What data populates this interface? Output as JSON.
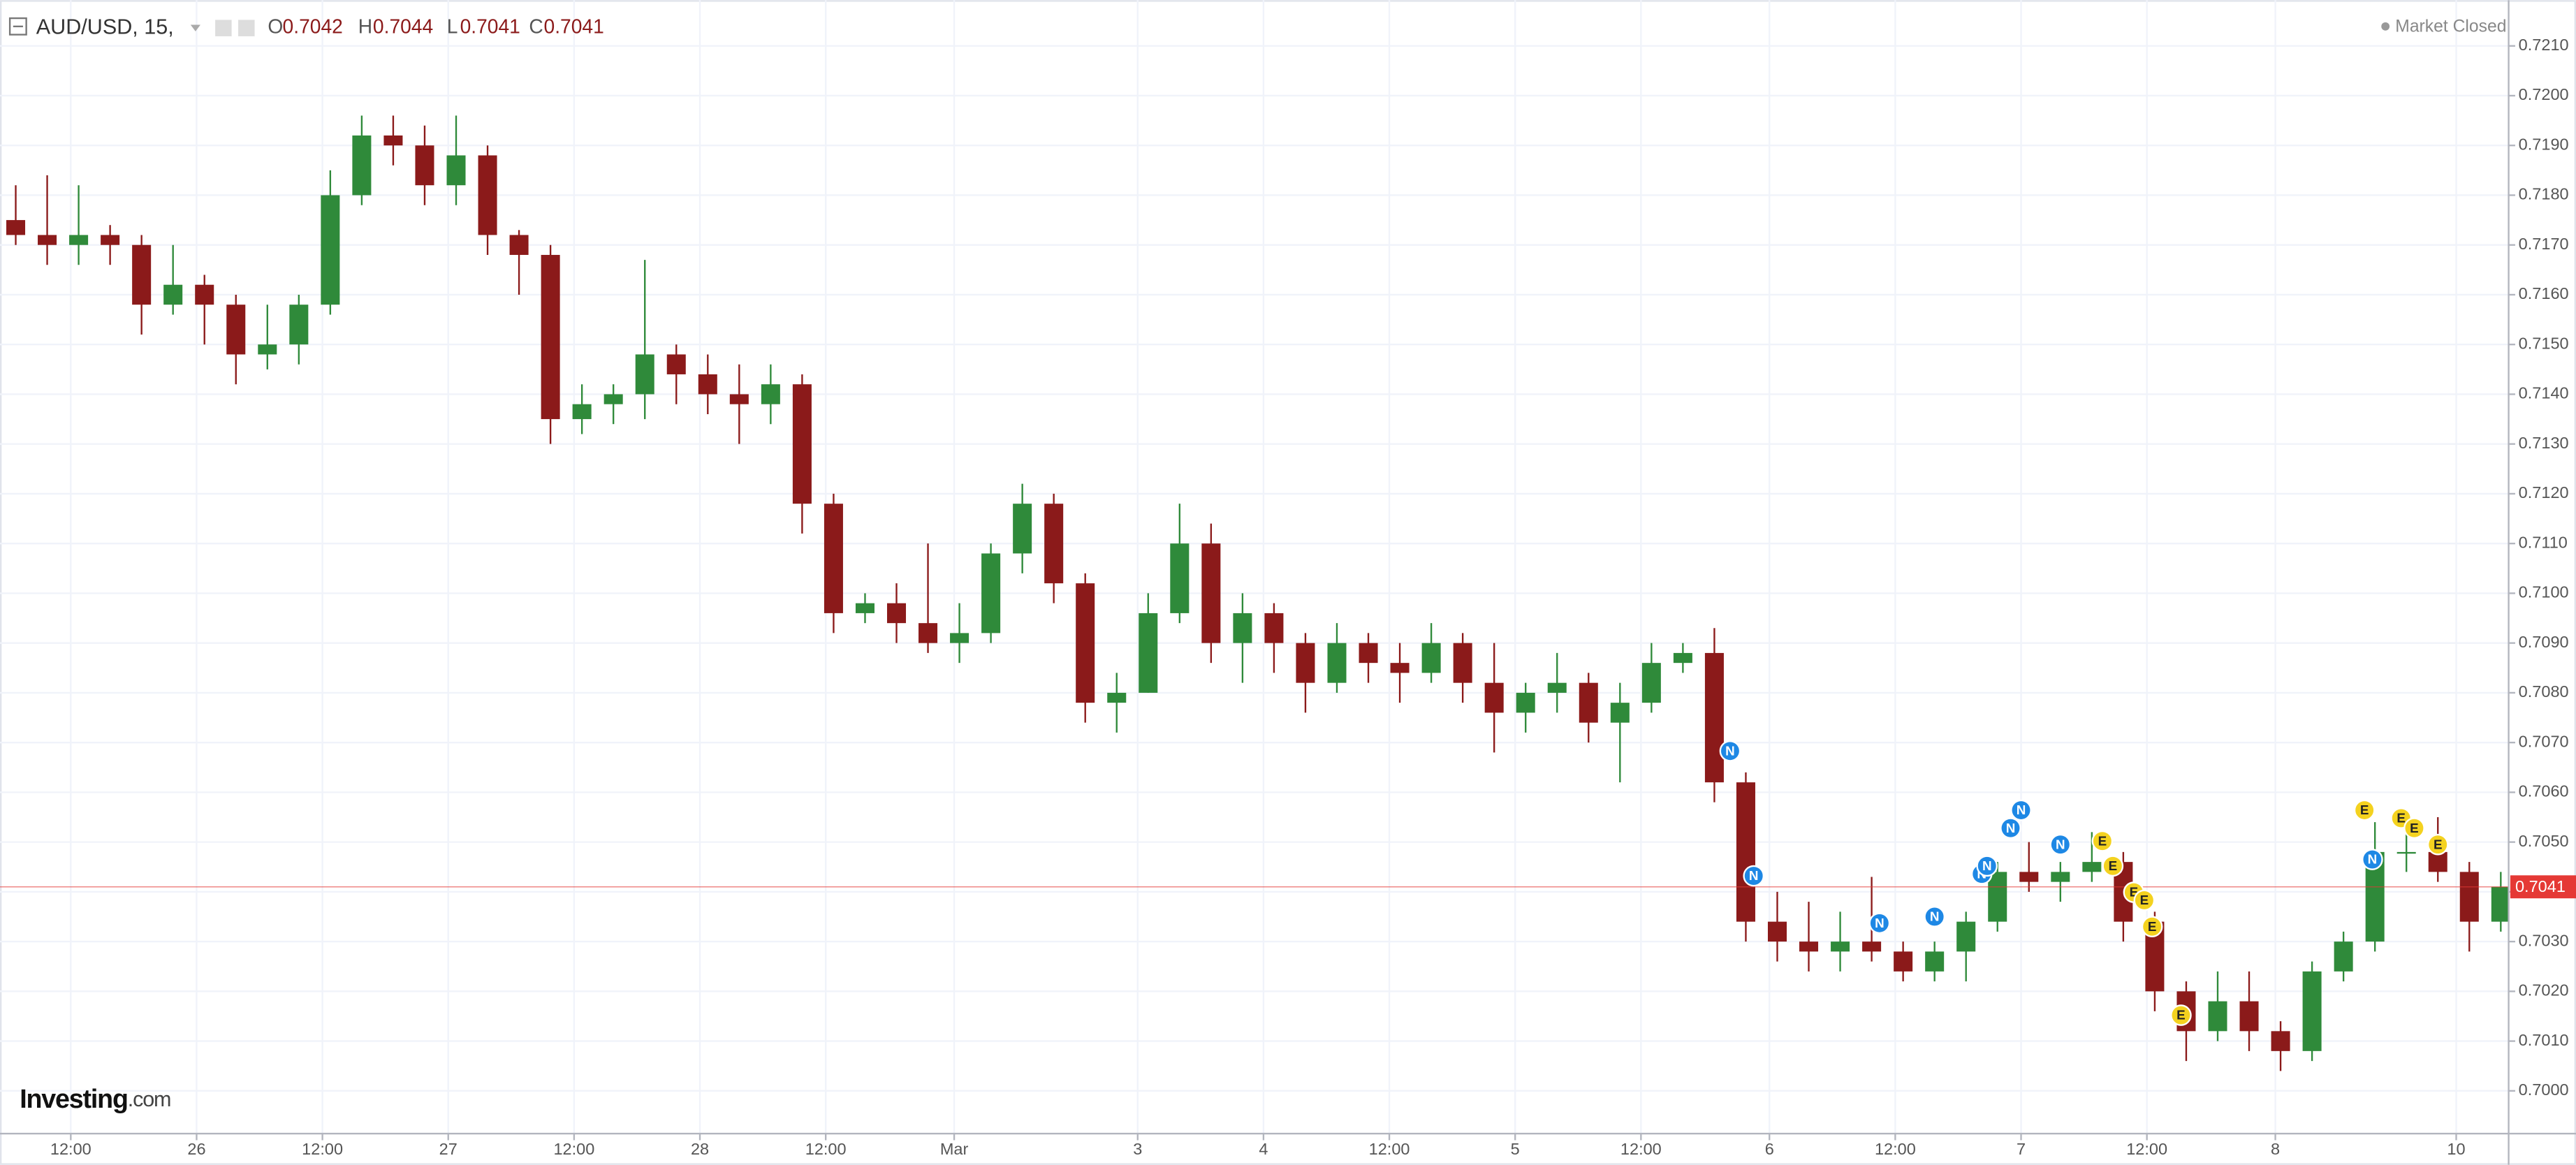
{
  "chart_data": {
    "type": "candlestick",
    "title": "AUD/USD, 15,",
    "header": {
      "open_letter": "O",
      "open": 0.7042,
      "high_letter": "H",
      "high": 0.7044,
      "low_letter": "L",
      "low": 0.7041,
      "close_letter": "C",
      "close": 0.7041
    },
    "status": "Market Closed",
    "logo": {
      "name": "Investing",
      "suffix": ".com"
    },
    "last_price": 0.7041,
    "colors": {
      "up": "#2f8a3a",
      "down": "#8b1a1a",
      "N": "#1e88e5",
      "E": "#f4d21f",
      "last": "#e53935",
      "grid": "#f0f3fa"
    },
    "grid": true,
    "xlim": [
      21,
      978
    ],
    "ylim": [
      0.69914,
      0.72192
    ],
    "xticks": [
      {
        "value": 48,
        "label": "12:00"
      },
      {
        "value": 96,
        "label": "26"
      },
      {
        "value": 144,
        "label": "12:00"
      },
      {
        "value": 192,
        "label": "27"
      },
      {
        "value": 240,
        "label": "12:00"
      },
      {
        "value": 288,
        "label": "28"
      },
      {
        "value": 336,
        "label": "12:00"
      },
      {
        "value": 385,
        "label": "Mar"
      },
      {
        "value": 455,
        "label": "3"
      },
      {
        "value": 503,
        "label": "4"
      },
      {
        "value": 551,
        "label": "12:00"
      },
      {
        "value": 599,
        "label": "5"
      },
      {
        "value": 647,
        "label": "12:00"
      },
      {
        "value": 696,
        "label": "6"
      },
      {
        "value": 744,
        "label": "12:00"
      },
      {
        "value": 792,
        "label": "7"
      },
      {
        "value": 840,
        "label": "12:00"
      },
      {
        "value": 889,
        "label": "8"
      },
      {
        "value": 958,
        "label": "10"
      }
    ],
    "yticks": [
      {
        "value": 0.7,
        "label": "0.7000"
      },
      {
        "value": 0.701,
        "label": "0.7010"
      },
      {
        "value": 0.702,
        "label": "0.7020"
      },
      {
        "value": 0.703,
        "label": "0.7030"
      },
      {
        "value": 0.704,
        "label": "0.7040"
      },
      {
        "value": 0.705,
        "label": "0.7050"
      },
      {
        "value": 0.706,
        "label": "0.7060"
      },
      {
        "value": 0.707,
        "label": "0.7070"
      },
      {
        "value": 0.708,
        "label": "0.7080"
      },
      {
        "value": 0.709,
        "label": "0.7090"
      },
      {
        "value": 0.71,
        "label": "0.7100"
      },
      {
        "value": 0.711,
        "label": "0.7110"
      },
      {
        "value": 0.712,
        "label": "0.7120"
      },
      {
        "value": 0.713,
        "label": "0.7130"
      },
      {
        "value": 0.714,
        "label": "0.7140"
      },
      {
        "value": 0.715,
        "label": "0.7150"
      },
      {
        "value": 0.716,
        "label": "0.7160"
      },
      {
        "value": 0.717,
        "label": "0.7170"
      },
      {
        "value": 0.718,
        "label": "0.7180"
      },
      {
        "value": 0.719,
        "label": "0.7190"
      },
      {
        "value": 0.72,
        "label": "0.7200"
      },
      {
        "value": 0.721,
        "label": "0.7210"
      }
    ],
    "x": [
      27,
      39,
      51,
      63,
      75,
      87,
      99,
      111,
      123,
      135,
      147,
      159,
      171,
      183,
      195,
      207,
      219,
      231,
      243,
      255,
      267,
      279,
      291,
      303,
      315,
      327,
      339,
      351,
      363,
      375,
      387,
      399,
      411,
      423,
      435,
      447,
      459,
      471,
      483,
      495,
      507,
      519,
      531,
      543,
      555,
      567,
      579,
      591,
      603,
      615,
      627,
      639,
      651,
      663,
      675,
      687,
      699,
      711,
      723,
      735,
      747,
      759,
      771,
      783,
      795,
      807,
      819,
      831,
      843,
      855,
      867,
      879,
      891,
      903,
      915,
      927,
      939,
      951,
      963,
      975
    ],
    "open": [
      0.7175,
      0.7172,
      0.717,
      0.7172,
      0.717,
      0.7158,
      0.7162,
      0.7158,
      0.7148,
      0.715,
      0.7158,
      0.718,
      0.7192,
      0.719,
      0.7182,
      0.7188,
      0.7172,
      0.7168,
      0.7135,
      0.7138,
      0.714,
      0.7148,
      0.7144,
      0.714,
      0.7138,
      0.7142,
      0.7118,
      0.7096,
      0.7098,
      0.7094,
      0.709,
      0.7092,
      0.7108,
      0.7118,
      0.7102,
      0.7078,
      0.708,
      0.7096,
      0.711,
      0.709,
      0.7096,
      0.709,
      0.7082,
      0.709,
      0.7086,
      0.7084,
      0.709,
      0.7082,
      0.7076,
      0.708,
      0.7082,
      0.7074,
      0.7078,
      0.7086,
      0.7088,
      0.7062,
      0.7034,
      0.703,
      0.7028,
      0.703,
      0.7028,
      0.7024,
      0.7028,
      0.7034,
      0.7044,
      0.7042,
      0.7044,
      0.7046,
      0.7034,
      0.702,
      0.7012,
      0.7018,
      0.7012,
      0.7008,
      0.7024,
      0.703,
      0.7048,
      0.7048,
      0.7044,
      0.7034
    ],
    "high": [
      0.7182,
      0.7184,
      0.7182,
      0.7174,
      0.7172,
      0.717,
      0.7164,
      0.716,
      0.7158,
      0.716,
      0.7185,
      0.7196,
      0.7196,
      0.7194,
      0.7196,
      0.719,
      0.7173,
      0.717,
      0.7142,
      0.7142,
      0.7167,
      0.715,
      0.7148,
      0.7146,
      0.7146,
      0.7144,
      0.712,
      0.71,
      0.7102,
      0.711,
      0.7098,
      0.711,
      0.7122,
      0.712,
      0.7104,
      0.7084,
      0.71,
      0.7118,
      0.7114,
      0.71,
      0.7098,
      0.7092,
      0.7094,
      0.7092,
      0.709,
      0.7094,
      0.7092,
      0.709,
      0.7082,
      0.7088,
      0.7084,
      0.7082,
      0.709,
      0.709,
      0.7093,
      0.7064,
      0.704,
      0.7038,
      0.7036,
      0.7043,
      0.703,
      0.703,
      0.7036,
      0.7046,
      0.705,
      0.7046,
      0.7052,
      0.7048,
      0.7036,
      0.7022,
      0.7024,
      0.7024,
      0.7014,
      0.7026,
      0.7032,
      0.7054,
      0.7052,
      0.7055,
      0.7046,
      0.7044
    ],
    "low": [
      0.717,
      0.7166,
      0.7166,
      0.7166,
      0.7152,
      0.7156,
      0.715,
      0.7142,
      0.7145,
      0.7146,
      0.7156,
      0.7178,
      0.7186,
      0.7178,
      0.7178,
      0.7168,
      0.716,
      0.713,
      0.7132,
      0.7134,
      0.7135,
      0.7138,
      0.7136,
      0.713,
      0.7134,
      0.7112,
      0.7092,
      0.7094,
      0.709,
      0.7088,
      0.7086,
      0.709,
      0.7104,
      0.7098,
      0.7074,
      0.7072,
      0.708,
      0.7094,
      0.7086,
      0.7082,
      0.7084,
      0.7076,
      0.708,
      0.7082,
      0.7078,
      0.7082,
      0.7078,
      0.7068,
      0.7072,
      0.7076,
      0.707,
      0.7062,
      0.7076,
      0.7084,
      0.7058,
      0.703,
      0.7026,
      0.7024,
      0.7024,
      0.7026,
      0.7022,
      0.7022,
      0.7022,
      0.7032,
      0.704,
      0.7038,
      0.7042,
      0.703,
      0.7016,
      0.7006,
      0.701,
      0.7008,
      0.7004,
      0.7006,
      0.7022,
      0.7028,
      0.7044,
      0.7042,
      0.7028,
      0.7032
    ],
    "close": [
      0.7172,
      0.717,
      0.7172,
      0.717,
      0.7158,
      0.7162,
      0.7158,
      0.7148,
      0.715,
      0.7158,
      0.718,
      0.7192,
      0.719,
      0.7182,
      0.7188,
      0.7172,
      0.7168,
      0.7135,
      0.7138,
      0.714,
      0.7148,
      0.7144,
      0.714,
      0.7138,
      0.7142,
      0.7118,
      0.7096,
      0.7098,
      0.7094,
      0.709,
      0.7092,
      0.7108,
      0.7118,
      0.7102,
      0.7078,
      0.708,
      0.7096,
      0.711,
      0.709,
      0.7096,
      0.709,
      0.7082,
      0.709,
      0.7086,
      0.7084,
      0.709,
      0.7082,
      0.7076,
      0.708,
      0.7082,
      0.7074,
      0.7078,
      0.7086,
      0.7088,
      0.7062,
      0.7034,
      0.703,
      0.7028,
      0.703,
      0.7028,
      0.7024,
      0.7028,
      0.7034,
      0.7044,
      0.7042,
      0.7044,
      0.7046,
      0.7034,
      0.702,
      0.7012,
      0.7018,
      0.7012,
      0.7008,
      0.7024,
      0.703,
      0.7048,
      0.7048,
      0.7044,
      0.7034,
      0.7041
    ],
    "events": [
      {
        "label": "N",
        "x": 681,
        "price": 0.70683
      },
      {
        "label": "N",
        "x": 690,
        "price": 0.70432
      },
      {
        "label": "N",
        "x": 738,
        "price": 0.70337
      },
      {
        "label": "N",
        "x": 759,
        "price": 0.7035
      },
      {
        "label": "N",
        "x": 777,
        "price": 0.70436
      },
      {
        "label": "N",
        "x": 779,
        "price": 0.70452
      },
      {
        "label": "N",
        "x": 788,
        "price": 0.70528
      },
      {
        "label": "N",
        "x": 792,
        "price": 0.70564
      },
      {
        "label": "N",
        "x": 807,
        "price": 0.70495
      },
      {
        "label": "N",
        "x": 926,
        "price": 0.70465
      },
      {
        "label": "E",
        "x": 823,
        "price": 0.70502
      },
      {
        "label": "E",
        "x": 827,
        "price": 0.70452
      },
      {
        "label": "E",
        "x": 835,
        "price": 0.70399
      },
      {
        "label": "E",
        "x": 839,
        "price": 0.70383
      },
      {
        "label": "E",
        "x": 842,
        "price": 0.7033
      },
      {
        "label": "E",
        "x": 853,
        "price": 0.70152
      },
      {
        "label": "E",
        "x": 923,
        "price": 0.70564
      },
      {
        "label": "E",
        "x": 937,
        "price": 0.70548
      },
      {
        "label": "E",
        "x": 942,
        "price": 0.70528
      },
      {
        "label": "E",
        "x": 951,
        "price": 0.70495
      }
    ]
  }
}
